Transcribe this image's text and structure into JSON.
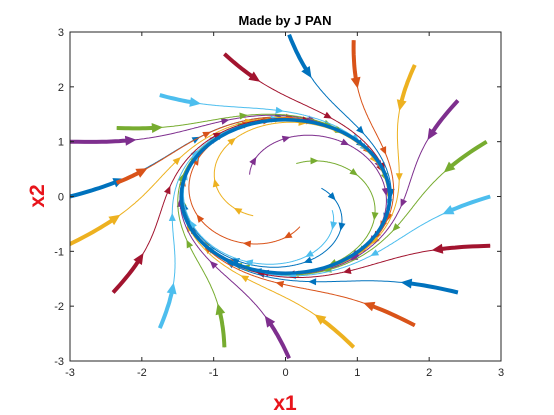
{
  "chart_data": {
    "type": "line",
    "title": "Made by J PAN",
    "xlabel": "x1",
    "ylabel": "x2",
    "xlim": [
      -3,
      3
    ],
    "ylim": [
      -3,
      3
    ],
    "xticks": [
      "-3",
      "-2",
      "-1",
      "0",
      "1",
      "2",
      "3"
    ],
    "yticks": [
      "-3",
      "-2",
      "-1",
      "0",
      "1",
      "2",
      "3"
    ],
    "grid": false,
    "legend": "none",
    "label_color": "#e8141b",
    "colors": [
      "#0072bd",
      "#d95319",
      "#edb120",
      "#7e2f8e",
      "#77ac30",
      "#4dbeee",
      "#a2142f"
    ],
    "limit_cycle": {
      "shape": "ellipse",
      "center": [
        0,
        0
      ],
      "x_radius": 1.45,
      "y_radius": 1.4
    },
    "series": [
      {
        "start": [
          -3.0,
          0.0
        ]
      },
      {
        "start": [
          -2.35,
          0.25
        ]
      },
      {
        "start": [
          -3.05,
          -0.9
        ]
      },
      {
        "start": [
          -3.0,
          1.0
        ]
      },
      {
        "start": [
          -2.35,
          1.25
        ]
      },
      {
        "start": [
          -1.75,
          1.85
        ]
      },
      {
        "start": [
          -0.85,
          2.6
        ]
      },
      {
        "start": [
          0.05,
          2.95
        ]
      },
      {
        "start": [
          0.95,
          2.85
        ]
      },
      {
        "start": [
          1.8,
          2.4
        ]
      },
      {
        "start": [
          2.4,
          1.75
        ]
      },
      {
        "start": [
          2.8,
          1.0
        ]
      },
      {
        "start": [
          2.85,
          0.0
        ]
      },
      {
        "start": [
          2.85,
          -0.9
        ]
      },
      {
        "start": [
          2.4,
          -1.75
        ]
      },
      {
        "start": [
          1.8,
          -2.35
        ]
      },
      {
        "start": [
          0.95,
          -2.75
        ]
      },
      {
        "start": [
          0.05,
          -2.95
        ]
      },
      {
        "start": [
          -0.85,
          -2.75
        ]
      },
      {
        "start": [
          -1.75,
          -2.4
        ]
      },
      {
        "start": [
          -2.4,
          -1.75
        ]
      },
      {
        "start": [
          0.5,
          0.15
        ]
      },
      {
        "start": [
          0.2,
          -0.55
        ]
      },
      {
        "start": [
          -0.45,
          -0.35
        ]
      },
      {
        "start": [
          -0.5,
          0.4
        ]
      },
      {
        "start": [
          0.15,
          0.6
        ]
      },
      {
        "start": [
          0.65,
          -0.25
        ]
      }
    ]
  }
}
